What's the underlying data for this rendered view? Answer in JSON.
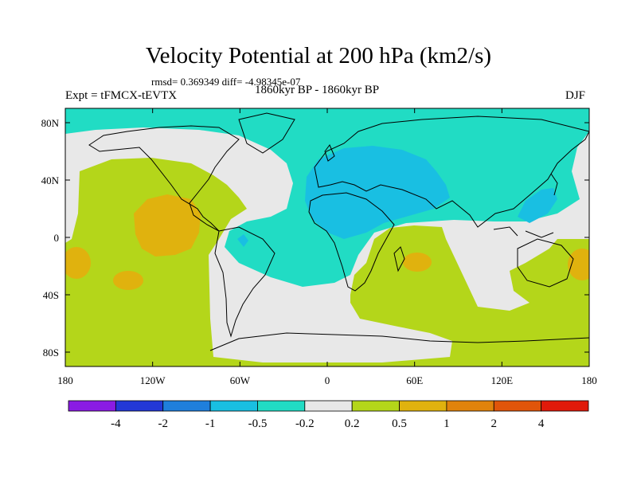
{
  "title": "Velocity Potential at 200 hPa (km2/s)",
  "stats": "rmsd= 0.369349 diff= -4.98345e-07",
  "experiment": "Expt = tFMCX-tEVTX",
  "period": "1860kyr BP - 1860kyr BP",
  "season": "DJF",
  "map": {
    "lon_ticks": [
      "180",
      "120W",
      "60W",
      "0",
      "60E",
      "120E",
      "180"
    ],
    "lat_ticks": [
      "80N",
      "40N",
      "0",
      "40S",
      "80S"
    ]
  },
  "colorbar": {
    "levels": [
      "-4",
      "-2",
      "-1",
      "-0.5",
      "-0.2",
      "0.2",
      "0.5",
      "1",
      "2",
      "4"
    ],
    "colors": [
      "#8a1be3",
      "#2338d6",
      "#1f7fdc",
      "#19bfe2",
      "#21dcc4",
      "#e8e8e8",
      "#b4d61a",
      "#e0b20e",
      "#e0830c",
      "#e0550a",
      "#e01a0a"
    ]
  }
}
